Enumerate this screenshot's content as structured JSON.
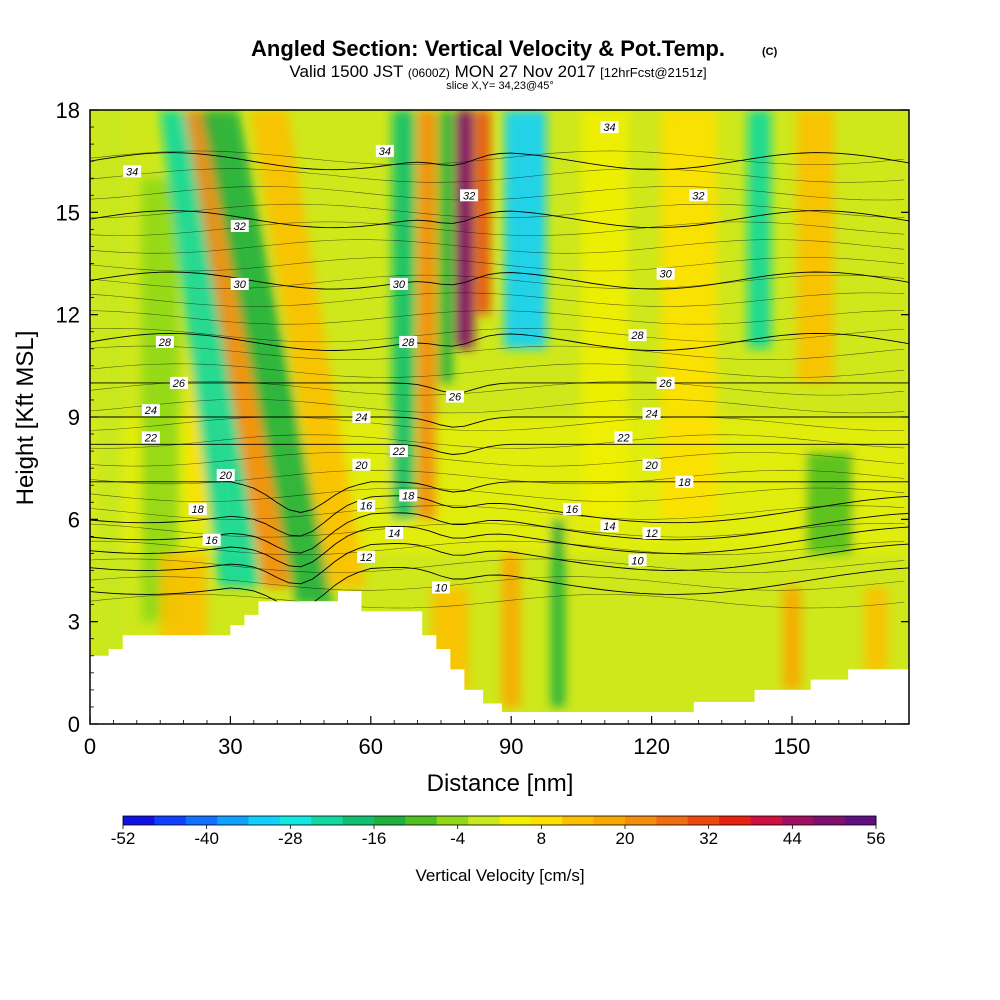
{
  "title": "Angled Section: Vertical Velocity & Pot.Temp.",
  "title_mark": "(C)",
  "subtitle": {
    "prefix": "Valid 1500 JST",
    "utc": "(0600Z)",
    "date": "MON 27 Nov 2017",
    "forecast": "[12hrFcst@2151z]"
  },
  "slice_text": "slice X,Y= 34,23@45°",
  "colors": {
    "ramp": [
      "#1010e0",
      "#1040ff",
      "#1070ff",
      "#10a0ff",
      "#10d0ff",
      "#10e8e0",
      "#10d8a0",
      "#10c070",
      "#20b040",
      "#50c020",
      "#90d818",
      "#c8e820",
      "#f0f000",
      "#fde000",
      "#fcc000",
      "#f8a800",
      "#f48c10",
      "#f06c10",
      "#ec4810",
      "#e82010",
      "#d01040",
      "#a01060",
      "#801070",
      "#601080"
    ],
    "terrain": "#ffffff",
    "contour": "#000000"
  },
  "chart_data": {
    "type": "heatmap",
    "title": "Angled Section: Vertical Velocity & Pot.Temp.",
    "xlabel": "Distance [nm]",
    "ylabel": "Height [Kft MSL]",
    "xlim": [
      0,
      175
    ],
    "ylim": [
      0,
      18
    ],
    "x_ticks": [
      0,
      30,
      60,
      90,
      120,
      150
    ],
    "y_ticks": [
      0,
      3,
      6,
      9,
      12,
      15,
      18
    ],
    "colorbar": {
      "label": "Vertical Velocity [cm/s]",
      "min": -52,
      "max": 56,
      "step": 4.5,
      "ticks": [
        -52,
        -40,
        -28,
        -16,
        -4,
        8,
        20,
        32,
        44,
        56
      ]
    },
    "vertical_velocity_features": [
      {
        "x": 4,
        "y_range": [
          0,
          18
        ],
        "w": 6,
        "value": 0,
        "note": "weak"
      },
      {
        "x": 15,
        "y_range": [
          3,
          16
        ],
        "w": 8,
        "value": -6
      },
      {
        "x": 20,
        "y_range": [
          2,
          5
        ],
        "w": 10,
        "value": 14
      },
      {
        "x": 25,
        "y_range": [
          6,
          18
        ],
        "w": 8,
        "value": 8
      },
      {
        "x": 32,
        "y_range": [
          4,
          18
        ],
        "w": 9,
        "value": -22,
        "tilt": -0.9
      },
      {
        "x": 40,
        "y_range": [
          4,
          18
        ],
        "w": 6,
        "value": 22,
        "tilt": -1.2
      },
      {
        "x": 48,
        "y_range": [
          3.5,
          18
        ],
        "w": 8,
        "value": -14,
        "tilt": -1.4
      },
      {
        "x": 55,
        "y_range": [
          4,
          18
        ],
        "w": 8,
        "value": 14,
        "tilt": -1.2
      },
      {
        "x": 67,
        "y_range": [
          6,
          18
        ],
        "w": 5,
        "value": -18
      },
      {
        "x": 72,
        "y_range": [
          6,
          18
        ],
        "w": 4,
        "value": 20
      },
      {
        "x": 76,
        "y_range": [
          10,
          18
        ],
        "w": 3,
        "value": -12
      },
      {
        "x": 80,
        "y_range": [
          11,
          18
        ],
        "w": 4,
        "value": 48
      },
      {
        "x": 84,
        "y_range": [
          12,
          18
        ],
        "w": 3,
        "value": 30
      },
      {
        "x": 93,
        "y_range": [
          11,
          18
        ],
        "w": 9,
        "value": -32
      },
      {
        "x": 100,
        "y_range": [
          0.5,
          6
        ],
        "w": 3,
        "value": -12
      },
      {
        "x": 90,
        "y_range": [
          0.5,
          5
        ],
        "w": 4,
        "value": 16
      },
      {
        "x": 77,
        "y_range": [
          1,
          4
        ],
        "w": 8,
        "value": 14
      },
      {
        "x": 110,
        "y_range": [
          6,
          18
        ],
        "w": 10,
        "value": 6
      },
      {
        "x": 128,
        "y_range": [
          6,
          18
        ],
        "w": 12,
        "value": 10
      },
      {
        "x": 143,
        "y_range": [
          11,
          18
        ],
        "w": 5,
        "value": -22
      },
      {
        "x": 155,
        "y_range": [
          10,
          18
        ],
        "w": 8,
        "value": 14
      },
      {
        "x": 158,
        "y_range": [
          5,
          8
        ],
        "w": 10,
        "value": -10
      },
      {
        "x": 150,
        "y_range": [
          1,
          4
        ],
        "w": 4,
        "value": 16
      },
      {
        "x": 168,
        "y_range": [
          1.5,
          4
        ],
        "w": 5,
        "value": 14
      }
    ],
    "potential_temperature_contours": {
      "levels": [
        10,
        12,
        14,
        16,
        18,
        20,
        22,
        24,
        26,
        28,
        30,
        32,
        34
      ],
      "labels": [
        {
          "text": "34",
          "x": 9,
          "y": 16.2
        },
        {
          "text": "34",
          "x": 63,
          "y": 16.8
        },
        {
          "text": "34",
          "x": 111,
          "y": 17.5
        },
        {
          "text": "32",
          "x": 32,
          "y": 14.6
        },
        {
          "text": "32",
          "x": 81,
          "y": 15.5
        },
        {
          "text": "32",
          "x": 130,
          "y": 15.5
        },
        {
          "text": "30",
          "x": 32,
          "y": 12.9
        },
        {
          "text": "30",
          "x": 66,
          "y": 12.9
        },
        {
          "text": "30",
          "x": 123,
          "y": 13.2
        },
        {
          "text": "28",
          "x": 16,
          "y": 11.2
        },
        {
          "text": "28",
          "x": 68,
          "y": 11.2
        },
        {
          "text": "28",
          "x": 117,
          "y": 11.4
        },
        {
          "text": "26",
          "x": 19,
          "y": 10.0
        },
        {
          "text": "26",
          "x": 78,
          "y": 9.6
        },
        {
          "text": "26",
          "x": 123,
          "y": 10.0
        },
        {
          "text": "24",
          "x": 13,
          "y": 9.2
        },
        {
          "text": "24",
          "x": 58,
          "y": 9.0
        },
        {
          "text": "24",
          "x": 120,
          "y": 9.1
        },
        {
          "text": "22",
          "x": 13,
          "y": 8.4
        },
        {
          "text": "22",
          "x": 66,
          "y": 8.0
        },
        {
          "text": "22",
          "x": 114,
          "y": 8.4
        },
        {
          "text": "20",
          "x": 29,
          "y": 7.3
        },
        {
          "text": "20",
          "x": 58,
          "y": 7.6
        },
        {
          "text": "20",
          "x": 120,
          "y": 7.6
        },
        {
          "text": "18",
          "x": 68,
          "y": 6.7
        },
        {
          "text": "18",
          "x": 127,
          "y": 7.1
        },
        {
          "text": "18",
          "x": 23,
          "y": 6.3
        },
        {
          "text": "16",
          "x": 59,
          "y": 6.4
        },
        {
          "text": "16",
          "x": 103,
          "y": 6.3
        },
        {
          "text": "16",
          "x": 26,
          "y": 5.4
        },
        {
          "text": "14",
          "x": 65,
          "y": 5.6
        },
        {
          "text": "14",
          "x": 111,
          "y": 5.8
        },
        {
          "text": "12",
          "x": 59,
          "y": 4.9
        },
        {
          "text": "12",
          "x": 120,
          "y": 5.6
        },
        {
          "text": "10",
          "x": 75,
          "y": 4.0
        },
        {
          "text": "10",
          "x": 117,
          "y": 4.8
        }
      ]
    },
    "terrain_profile": [
      [
        0,
        2.0
      ],
      [
        4,
        2.0
      ],
      [
        4,
        2.2
      ],
      [
        7,
        2.2
      ],
      [
        7,
        2.6
      ],
      [
        30,
        2.6
      ],
      [
        30,
        2.9
      ],
      [
        33,
        2.9
      ],
      [
        33,
        3.2
      ],
      [
        36,
        3.2
      ],
      [
        36,
        3.6
      ],
      [
        53,
        3.6
      ],
      [
        53,
        3.9
      ],
      [
        58,
        3.9
      ],
      [
        58,
        3.3
      ],
      [
        71,
        3.3
      ],
      [
        71,
        2.6
      ],
      [
        74,
        2.6
      ],
      [
        74,
        2.2
      ],
      [
        77,
        2.2
      ],
      [
        77,
        1.6
      ],
      [
        80,
        1.6
      ],
      [
        80,
        1.0
      ],
      [
        84,
        1.0
      ],
      [
        84,
        0.6
      ],
      [
        88,
        0.6
      ],
      [
        88,
        0.35
      ],
      [
        129,
        0.35
      ],
      [
        129,
        0.65
      ],
      [
        142,
        0.65
      ],
      [
        142,
        1.0
      ],
      [
        154,
        1.0
      ],
      [
        154,
        1.3
      ],
      [
        162,
        1.3
      ],
      [
        162,
        1.6
      ],
      [
        175,
        1.6
      ]
    ]
  }
}
